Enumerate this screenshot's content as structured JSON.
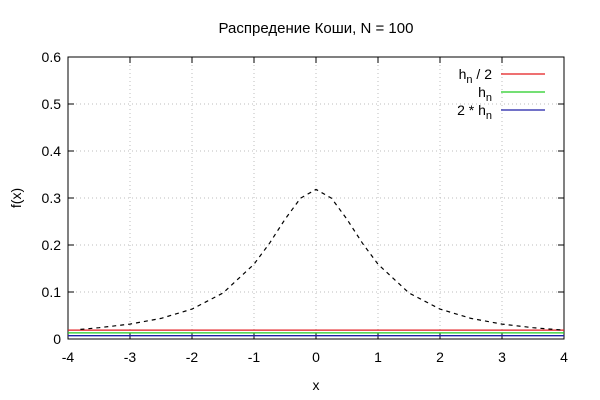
{
  "chart_data": {
    "type": "line",
    "title": "Распредение Коши, N = 100",
    "xlabel": "x",
    "ylabel": "f(x)",
    "xlim": [
      -4,
      4
    ],
    "ylim": [
      0,
      0.6
    ],
    "xticks": [
      -4,
      -3,
      -2,
      -1,
      0,
      1,
      2,
      3,
      4
    ],
    "yticks": [
      0,
      0.1,
      0.2,
      0.3,
      0.4,
      0.5,
      0.6
    ],
    "grid": true,
    "legend_position": "top-right",
    "density": {
      "style": "dashed",
      "color": "#000000",
      "x": [
        -3.8,
        -3.5,
        -3.0,
        -2.5,
        -2.0,
        -1.5,
        -1.0,
        -0.75,
        -0.5,
        -0.25,
        0.0,
        0.25,
        0.5,
        0.75,
        1.0,
        1.5,
        2.0,
        2.5,
        3.0,
        3.5,
        4.0
      ],
      "y": [
        0.0205,
        0.0241,
        0.0318,
        0.0439,
        0.0637,
        0.0979,
        0.1592,
        0.2037,
        0.2546,
        0.2996,
        0.3183,
        0.2996,
        0.2546,
        0.2037,
        0.1592,
        0.0979,
        0.0637,
        0.0439,
        0.0318,
        0.0241,
        0.0187
      ]
    },
    "series": [
      {
        "name": "h",
        "suffix": " / 2",
        "prefix": "",
        "color": "#e31a1c",
        "x": [
          -4,
          4
        ],
        "y": [
          0.019,
          0.019
        ]
      },
      {
        "name": "h",
        "suffix": "",
        "prefix": "",
        "color": "#22cc22",
        "x": [
          -4,
          4
        ],
        "y": [
          0.013,
          0.013
        ]
      },
      {
        "name": "h",
        "suffix": "",
        "prefix": "2 * ",
        "color": "#1f1fa8",
        "x": [
          -4,
          4
        ],
        "y": [
          0.007,
          0.007
        ]
      }
    ],
    "legend_subscript": "n"
  }
}
